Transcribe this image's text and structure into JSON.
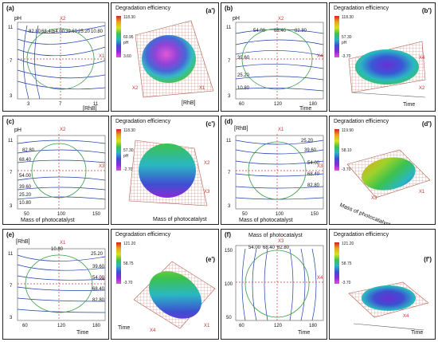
{
  "panels": [
    {
      "id": "a",
      "tag": "(a)",
      "y_label": "pH",
      "x_label": "[RhB]",
      "y_ticks": [
        "11",
        "7",
        "3"
      ],
      "x_ticks": [
        "3",
        "7",
        "11"
      ],
      "contour_labels": [
        "82.80",
        "68.40",
        "54.00",
        "39.60",
        "25.20",
        "10.80"
      ],
      "axis_labels": [
        "X2",
        "X1"
      ]
    },
    {
      "id": "a3d",
      "tag": "(a')",
      "title": "Degradation efficiency",
      "colorbar": [
        "118.30",
        "60.95",
        "3.60"
      ],
      "cb_extra": "pH",
      "axis_labels": [
        "[RhB]",
        "X2",
        "X1"
      ]
    },
    {
      "id": "b",
      "tag": "(b)",
      "y_label": "pH",
      "x_label": "Time",
      "y_ticks": [
        "11",
        "7",
        "3"
      ],
      "x_ticks": [
        "60",
        "120",
        "180"
      ],
      "contour_labels": [
        "54.00",
        "68.40",
        "82.80",
        "39.60",
        "25.20",
        "10.80"
      ],
      "axis_labels": [
        "X2",
        "X4"
      ]
    },
    {
      "id": "b3d",
      "tag": "(b')",
      "title": "Degradation efficiency",
      "colorbar": [
        "118.30",
        "57.30",
        "-3.70"
      ],
      "cb_extra": "pH",
      "axis_labels": [
        "Time",
        "X4",
        "X2"
      ]
    },
    {
      "id": "c",
      "tag": "(c)",
      "y_label": "pH",
      "x_label": "Mass of photocatalyst",
      "y_ticks": [
        "11",
        "7",
        "3"
      ],
      "x_ticks": [
        "50",
        "100",
        "150"
      ],
      "contour_labels": [
        "82.80",
        "68.40",
        "54.00",
        "39.60",
        "25.20",
        "10.80"
      ],
      "axis_labels": [
        "X2",
        "X3"
      ]
    },
    {
      "id": "c3d",
      "tag": "(c')",
      "title": "Degradation efficiency",
      "colorbar": [
        "118.30",
        "57.30",
        "-2.70"
      ],
      "cb_extra": "pH",
      "axis_labels": [
        "Mass of photocatalyst",
        "X3",
        "X2"
      ]
    },
    {
      "id": "d",
      "tag": "(d)",
      "y_label": "[RhB]",
      "x_label": "Mass of photocatalyst",
      "y_ticks": [
        "11",
        "7",
        "3"
      ],
      "x_ticks": [
        "50",
        "100",
        "150"
      ],
      "contour_labels": [
        "25.20",
        "39.60",
        "54.00",
        "68.40",
        "82.80"
      ],
      "axis_labels": [
        "X1",
        "X3"
      ]
    },
    {
      "id": "d3d",
      "tag": "(d')",
      "title": "Degradation efficiency",
      "colorbar": [
        "119.90",
        "58.10",
        "-3.70"
      ],
      "axis_labels": [
        "Mass of photocatalyst",
        "X3",
        "X1"
      ]
    },
    {
      "id": "e",
      "tag": "(e)",
      "y_label": "[RhB]",
      "x_label": "Time",
      "y_ticks": [
        "11",
        "7",
        "3"
      ],
      "x_ticks": [
        "60",
        "120",
        "180"
      ],
      "contour_labels": [
        "10.80",
        "25.20",
        "39.60",
        "54.00",
        "68.40",
        "82.80"
      ],
      "axis_labels": [
        "X1",
        "X4"
      ]
    },
    {
      "id": "e3d",
      "tag": "(e')",
      "title": "Degradation efficiency",
      "colorbar": [
        "121.20",
        "58.75",
        "-3.70"
      ],
      "axis_labels": [
        "Time",
        "X4",
        "X1"
      ]
    },
    {
      "id": "f",
      "tag": "(f)",
      "y_label": "Mass of photocatalyst",
      "x_label": "Time",
      "y_ticks": [
        "150",
        "100",
        "50"
      ],
      "x_ticks": [
        "60",
        "120",
        "180"
      ],
      "contour_labels": [
        "54.00",
        "68.40",
        "82.80"
      ],
      "axis_labels": [
        "X3",
        "X4"
      ]
    },
    {
      "id": "f3d",
      "tag": "(f')",
      "title": "Degradation efficiency",
      "colorbar": [
        "121.20",
        "58.75",
        "-3.70"
      ],
      "axis_labels": [
        "Time",
        "X4"
      ]
    }
  ],
  "ticks_mid": [
    "2.00",
    "1.50",
    "1.00",
    "0.50",
    "0.00",
    "-0.50",
    "-1.00",
    "-1.50",
    "-2.00"
  ],
  "colors": {
    "contour": "#1e3fa8",
    "circle": "#3a9a4a",
    "dashed": "#d23b3b",
    "mesh": "#b06050",
    "border": "#222222"
  }
}
